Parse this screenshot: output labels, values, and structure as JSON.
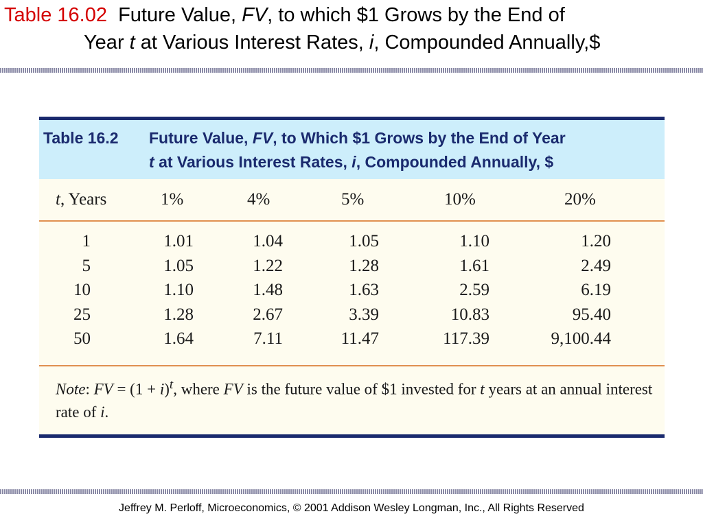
{
  "title": {
    "label": "Table 16.02",
    "line1_a": "Future Value,",
    "line1_fv": "FV",
    "line1_b": ", to which $1 Grows by the End of",
    "line2_a": "Year",
    "line2_t": "t",
    "line2_b": "at Various Interest Rates,",
    "line2_i": "i",
    "line2_c": ", Compounded Annually,$"
  },
  "table": {
    "label": "Table 16.2",
    "head1_a": "Future Value,",
    "head1_fv": "FV",
    "head1_b": ", to Which $1 Grows by the End of Year",
    "head2_t": "t",
    "head2_a": "at Various Interest Rates,",
    "head2_i": "i",
    "head2_b": ", Compounded Annually, $",
    "col_t": "t",
    "col_years": ", Years",
    "columns": [
      "1%",
      "4%",
      "5%",
      "10%",
      "20%"
    ],
    "rows": [
      [
        "1",
        "1.01",
        "1.04",
        "1.05",
        "1.10",
        "1.20"
      ],
      [
        "5",
        "1.05",
        "1.22",
        "1.28",
        "1.61",
        "2.49"
      ],
      [
        "10",
        "1.10",
        "1.48",
        "1.63",
        "2.59",
        "6.19"
      ],
      [
        "25",
        "1.28",
        "2.67",
        "3.39",
        "10.83",
        "95.40"
      ],
      [
        "50",
        "1.64",
        "7.11",
        "11.47",
        "117.39",
        "9,100.44"
      ]
    ],
    "note": {
      "label": "Note",
      "a": ": ",
      "fv1": "FV",
      "b": " = (1 + ",
      "i1": "i",
      "c": ")",
      "sup": "t",
      "d": ", where ",
      "fv2": "FV",
      "e": " is the future value of $1 invested for ",
      "t": "t",
      "f": " years at an annual interest rate of ",
      "i2": "i",
      "g": "."
    }
  },
  "footer": "Jeffrey M. Perloff, Microeconomics,  © 2001 Addison Wesley Longman, Inc.,  All Rights Reserved",
  "colors": {
    "title_label": "#d40000",
    "table_header_bg": "#cdeefb",
    "table_navy": "#1a2a6e",
    "table_body_bg": "#fefcef",
    "rule_orange": "#e09050"
  }
}
